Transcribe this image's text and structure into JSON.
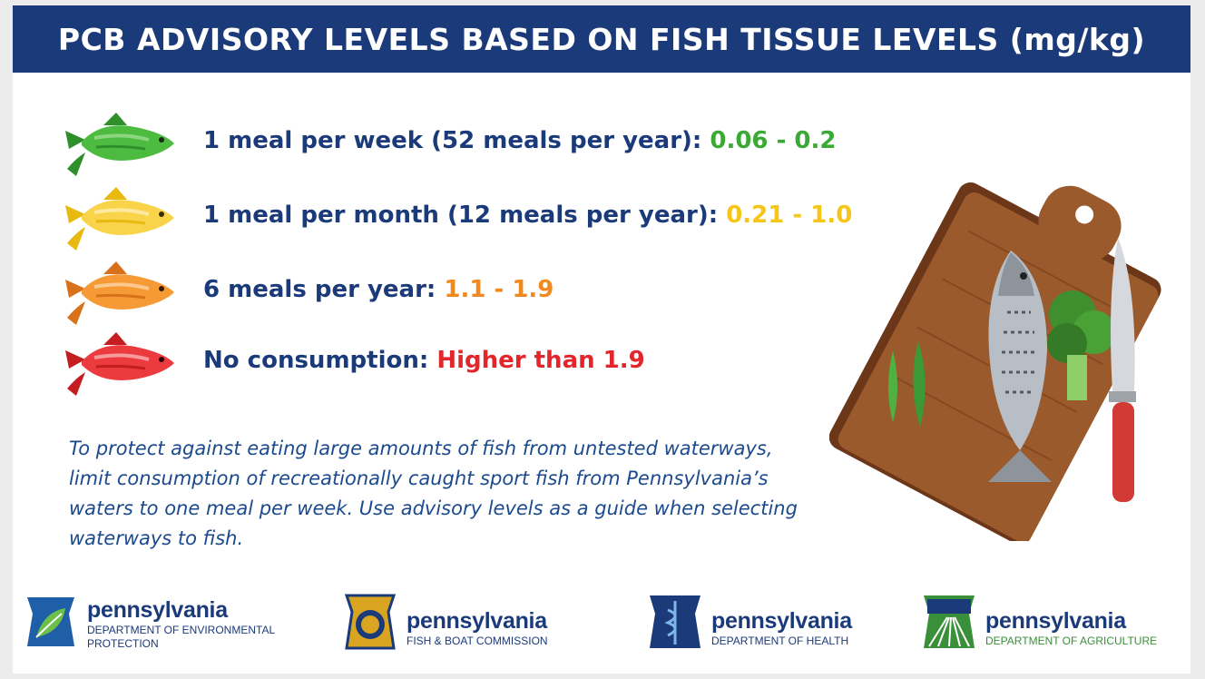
{
  "title": "PCB ADVISORY LEVELS BASED ON FISH TISSUE LEVELS (mg/kg)",
  "colors": {
    "banner": "#1b3a7a",
    "green": "#3aaa35",
    "yellow": "#f5c518",
    "orange": "#f08a1e",
    "red": "#e3262c"
  },
  "advisories": [
    {
      "label": "1 meal per week (52 meals per year):",
      "range": "0.06 - 0.2",
      "icon": "green-fish-icon"
    },
    {
      "label": "1 meal per month (12 meals per year):",
      "range": "0.21 - 1.0",
      "icon": "yellow-fish-icon"
    },
    {
      "label": "6 meals per year:",
      "range": "1.1 - 1.9",
      "icon": "orange-fish-icon"
    },
    {
      "label": "No consumption:",
      "range": "Higher than 1.9",
      "icon": "red-fish-icon"
    }
  ],
  "note": "To protect against eating large amounts of fish from untested waterways, limit consumption of recreationally caught sport fish from Pennsylvania’s waters to one meal per week. Use advisory levels as a guide when selecting waterways to fish.",
  "logos": [
    {
      "state": "pennsylvania",
      "dept": "DEPARTMENT OF ENVIRONMENTAL PROTECTION"
    },
    {
      "state": "pennsylvania",
      "dept": "FISH & BOAT COMMISSION"
    },
    {
      "state": "pennsylvania",
      "dept": "DEPARTMENT OF HEALTH"
    },
    {
      "state": "pennsylvania",
      "dept": "DEPARTMENT OF AGRICULTURE"
    }
  ]
}
